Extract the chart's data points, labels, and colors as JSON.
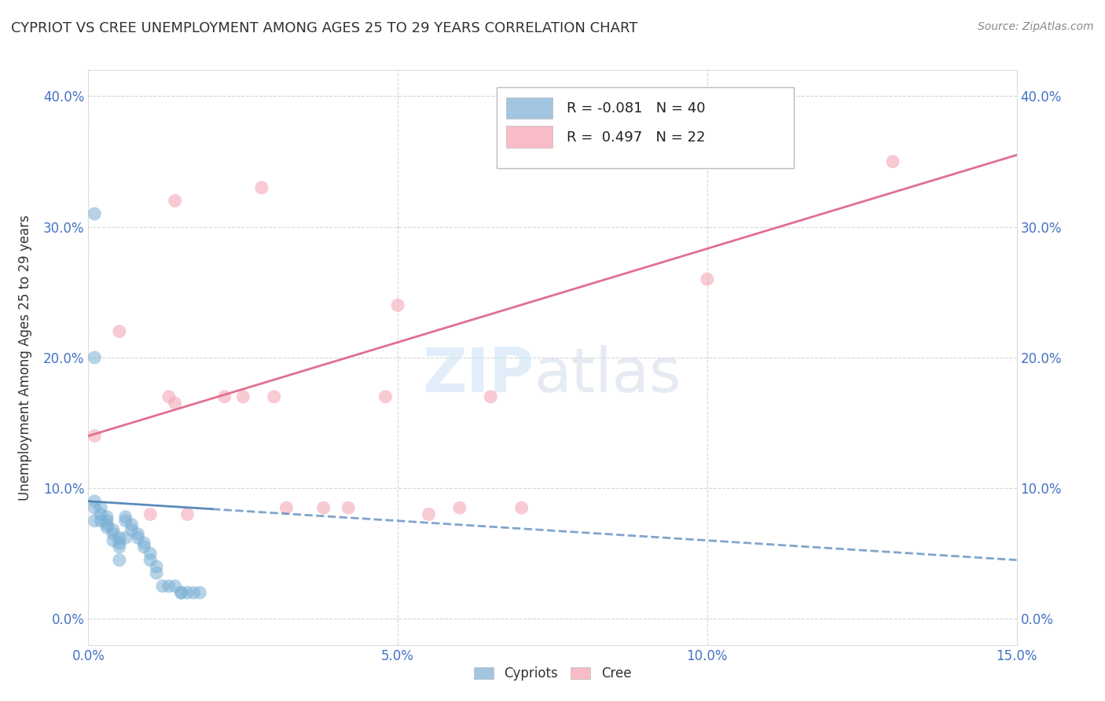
{
  "title": "CYPRIOT VS CREE UNEMPLOYMENT AMONG AGES 25 TO 29 YEARS CORRELATION CHART",
  "source": "Source: ZipAtlas.com",
  "ylabel": "Unemployment Among Ages 25 to 29 years",
  "xlabel": "",
  "xlim": [
    0.0,
    0.15
  ],
  "ylim": [
    -0.02,
    0.42
  ],
  "xticks": [
    0.0,
    0.05,
    0.1,
    0.15
  ],
  "xtick_labels": [
    "0.0%",
    "5.0%",
    "10.0%",
    "15.0%"
  ],
  "yticks": [
    0.0,
    0.1,
    0.2,
    0.3,
    0.4
  ],
  "ytick_labels": [
    "0.0%",
    "10.0%",
    "20.0%",
    "30.0%",
    "40.0%"
  ],
  "right_ytick_labels": [
    "0.0%",
    "10.0%",
    "20.0%",
    "30.0%",
    "40.0%"
  ],
  "cypriot_color": "#7bafd4",
  "cree_color": "#f4a0b0",
  "cypriot_R": -0.081,
  "cypriot_N": 40,
  "cree_R": 0.497,
  "cree_N": 22,
  "background_color": "#ffffff",
  "grid_color": "#cccccc",
  "cypriot_scatter_x": [
    0.001,
    0.001,
    0.001,
    0.001,
    0.002,
    0.002,
    0.002,
    0.003,
    0.003,
    0.003,
    0.003,
    0.004,
    0.004,
    0.004,
    0.005,
    0.005,
    0.005,
    0.005,
    0.006,
    0.006,
    0.006,
    0.007,
    0.007,
    0.008,
    0.008,
    0.009,
    0.009,
    0.01,
    0.01,
    0.011,
    0.011,
    0.012,
    0.013,
    0.014,
    0.015,
    0.015,
    0.016,
    0.017,
    0.018,
    0.001
  ],
  "cypriot_scatter_y": [
    0.31,
    0.09,
    0.085,
    0.075,
    0.085,
    0.08,
    0.075,
    0.078,
    0.075,
    0.072,
    0.07,
    0.068,
    0.065,
    0.06,
    0.062,
    0.058,
    0.055,
    0.045,
    0.078,
    0.075,
    0.062,
    0.072,
    0.068,
    0.065,
    0.062,
    0.058,
    0.055,
    0.05,
    0.045,
    0.04,
    0.035,
    0.025,
    0.025,
    0.025,
    0.02,
    0.02,
    0.02,
    0.02,
    0.02,
    0.2
  ],
  "cree_scatter_x": [
    0.001,
    0.005,
    0.01,
    0.013,
    0.014,
    0.016,
    0.022,
    0.025,
    0.028,
    0.03,
    0.032,
    0.038,
    0.042,
    0.048,
    0.05,
    0.055,
    0.06,
    0.065,
    0.07,
    0.1,
    0.13,
    0.014
  ],
  "cree_scatter_y": [
    0.14,
    0.22,
    0.08,
    0.17,
    0.165,
    0.08,
    0.17,
    0.17,
    0.33,
    0.17,
    0.085,
    0.085,
    0.085,
    0.17,
    0.24,
    0.08,
    0.085,
    0.17,
    0.085,
    0.26,
    0.35,
    0.32
  ],
  "cypriot_line_x0": 0.0,
  "cypriot_line_x1": 0.15,
  "cypriot_line_y0": 0.09,
  "cypriot_line_y1": 0.045,
  "cree_line_x0": 0.0,
  "cree_line_x1": 0.15,
  "cree_line_y0": 0.14,
  "cree_line_y1": 0.355
}
